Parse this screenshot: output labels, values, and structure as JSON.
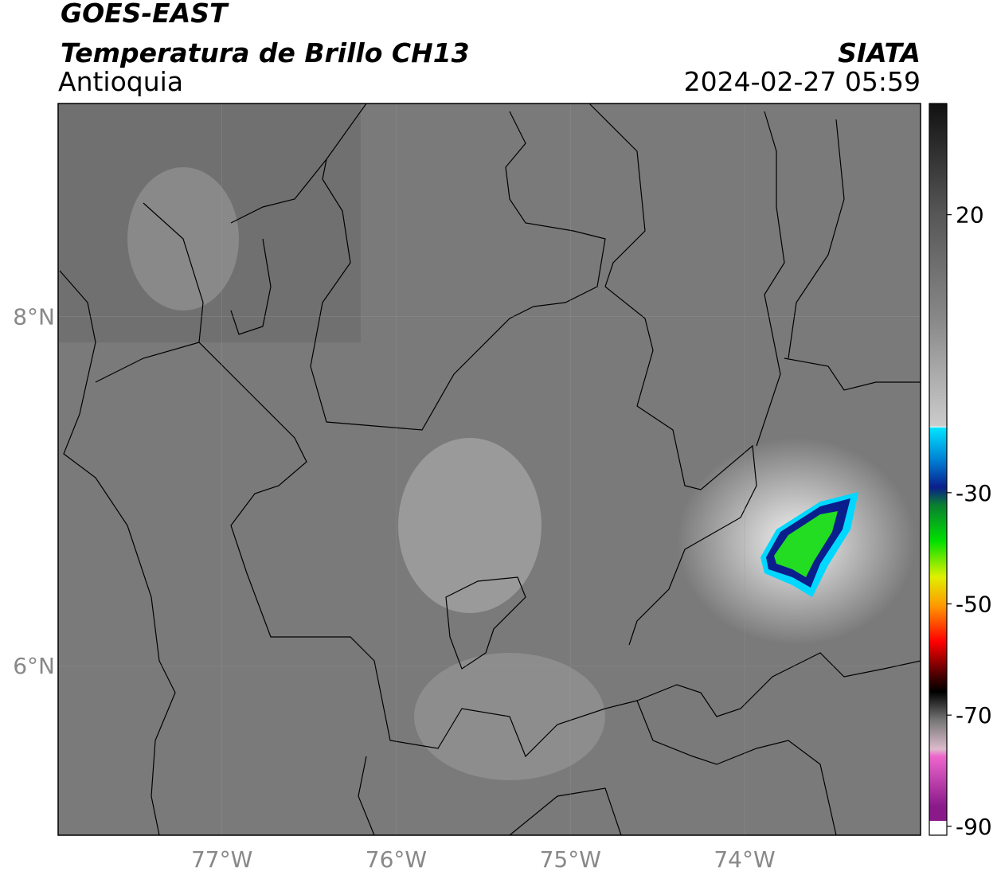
{
  "header": {
    "title": "GOES-EAST",
    "subtitle": "Temperatura de Brillo CH13",
    "region": "Antioquia",
    "source": "SIATA",
    "timestamp": "2024-02-27 05:59"
  },
  "map": {
    "xlim": [
      -77.94,
      -72.99
    ],
    "ylim": [
      5.03,
      9.22
    ],
    "xticks": [
      {
        "value": -77,
        "label": "77°W"
      },
      {
        "value": -76,
        "label": "76°W"
      },
      {
        "value": -75,
        "label": "75°W"
      },
      {
        "value": -74,
        "label": "74°W"
      }
    ],
    "yticks": [
      {
        "value": 8,
        "label": "8°N"
      },
      {
        "value": 6,
        "label": "6°N"
      }
    ]
  },
  "colorbar": {
    "clim": [
      -91.6,
      40
    ],
    "ticks": [
      20,
      -30,
      -50,
      -70,
      -90
    ]
  }
}
